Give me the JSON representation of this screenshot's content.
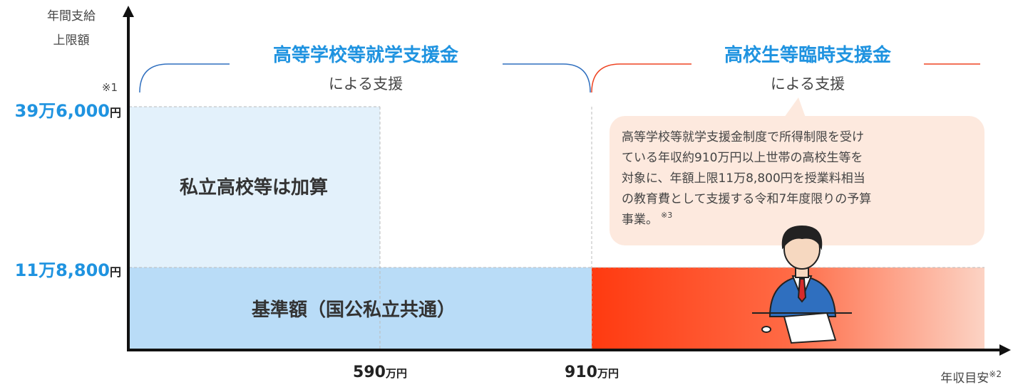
{
  "y_axis": {
    "title": [
      "年間支給",
      "上限額"
    ],
    "note": "※1",
    "ticks": [
      {
        "amount": "39万6,000",
        "unit": "円"
      },
      {
        "amount": "11万8,800",
        "unit": "円"
      }
    ]
  },
  "x_axis": {
    "title": "年収目安",
    "note": "※2",
    "ticks": [
      {
        "amount": "590",
        "unit": "万円"
      },
      {
        "amount": "910",
        "unit": "万円"
      }
    ]
  },
  "programs": [
    {
      "name": "高等学校等就学支援金",
      "subtitle": "による支援"
    },
    {
      "name": "高校生等臨時支援金",
      "subtitle": "による支援"
    }
  ],
  "regions": {
    "private_addition": "私立高校等は加算",
    "base": "基準額（国公私立共通）"
  },
  "callout": {
    "lines": [
      "高等学校等就学支援金制度で所得制限を受け",
      "ている年収約910万円以上世帯の高校生等を",
      "対象に、年額上限11万8,800円を授業料相当",
      "の教育費として支援する令和7年度限りの予算",
      "事業。"
    ],
    "note": "※3"
  }
}
